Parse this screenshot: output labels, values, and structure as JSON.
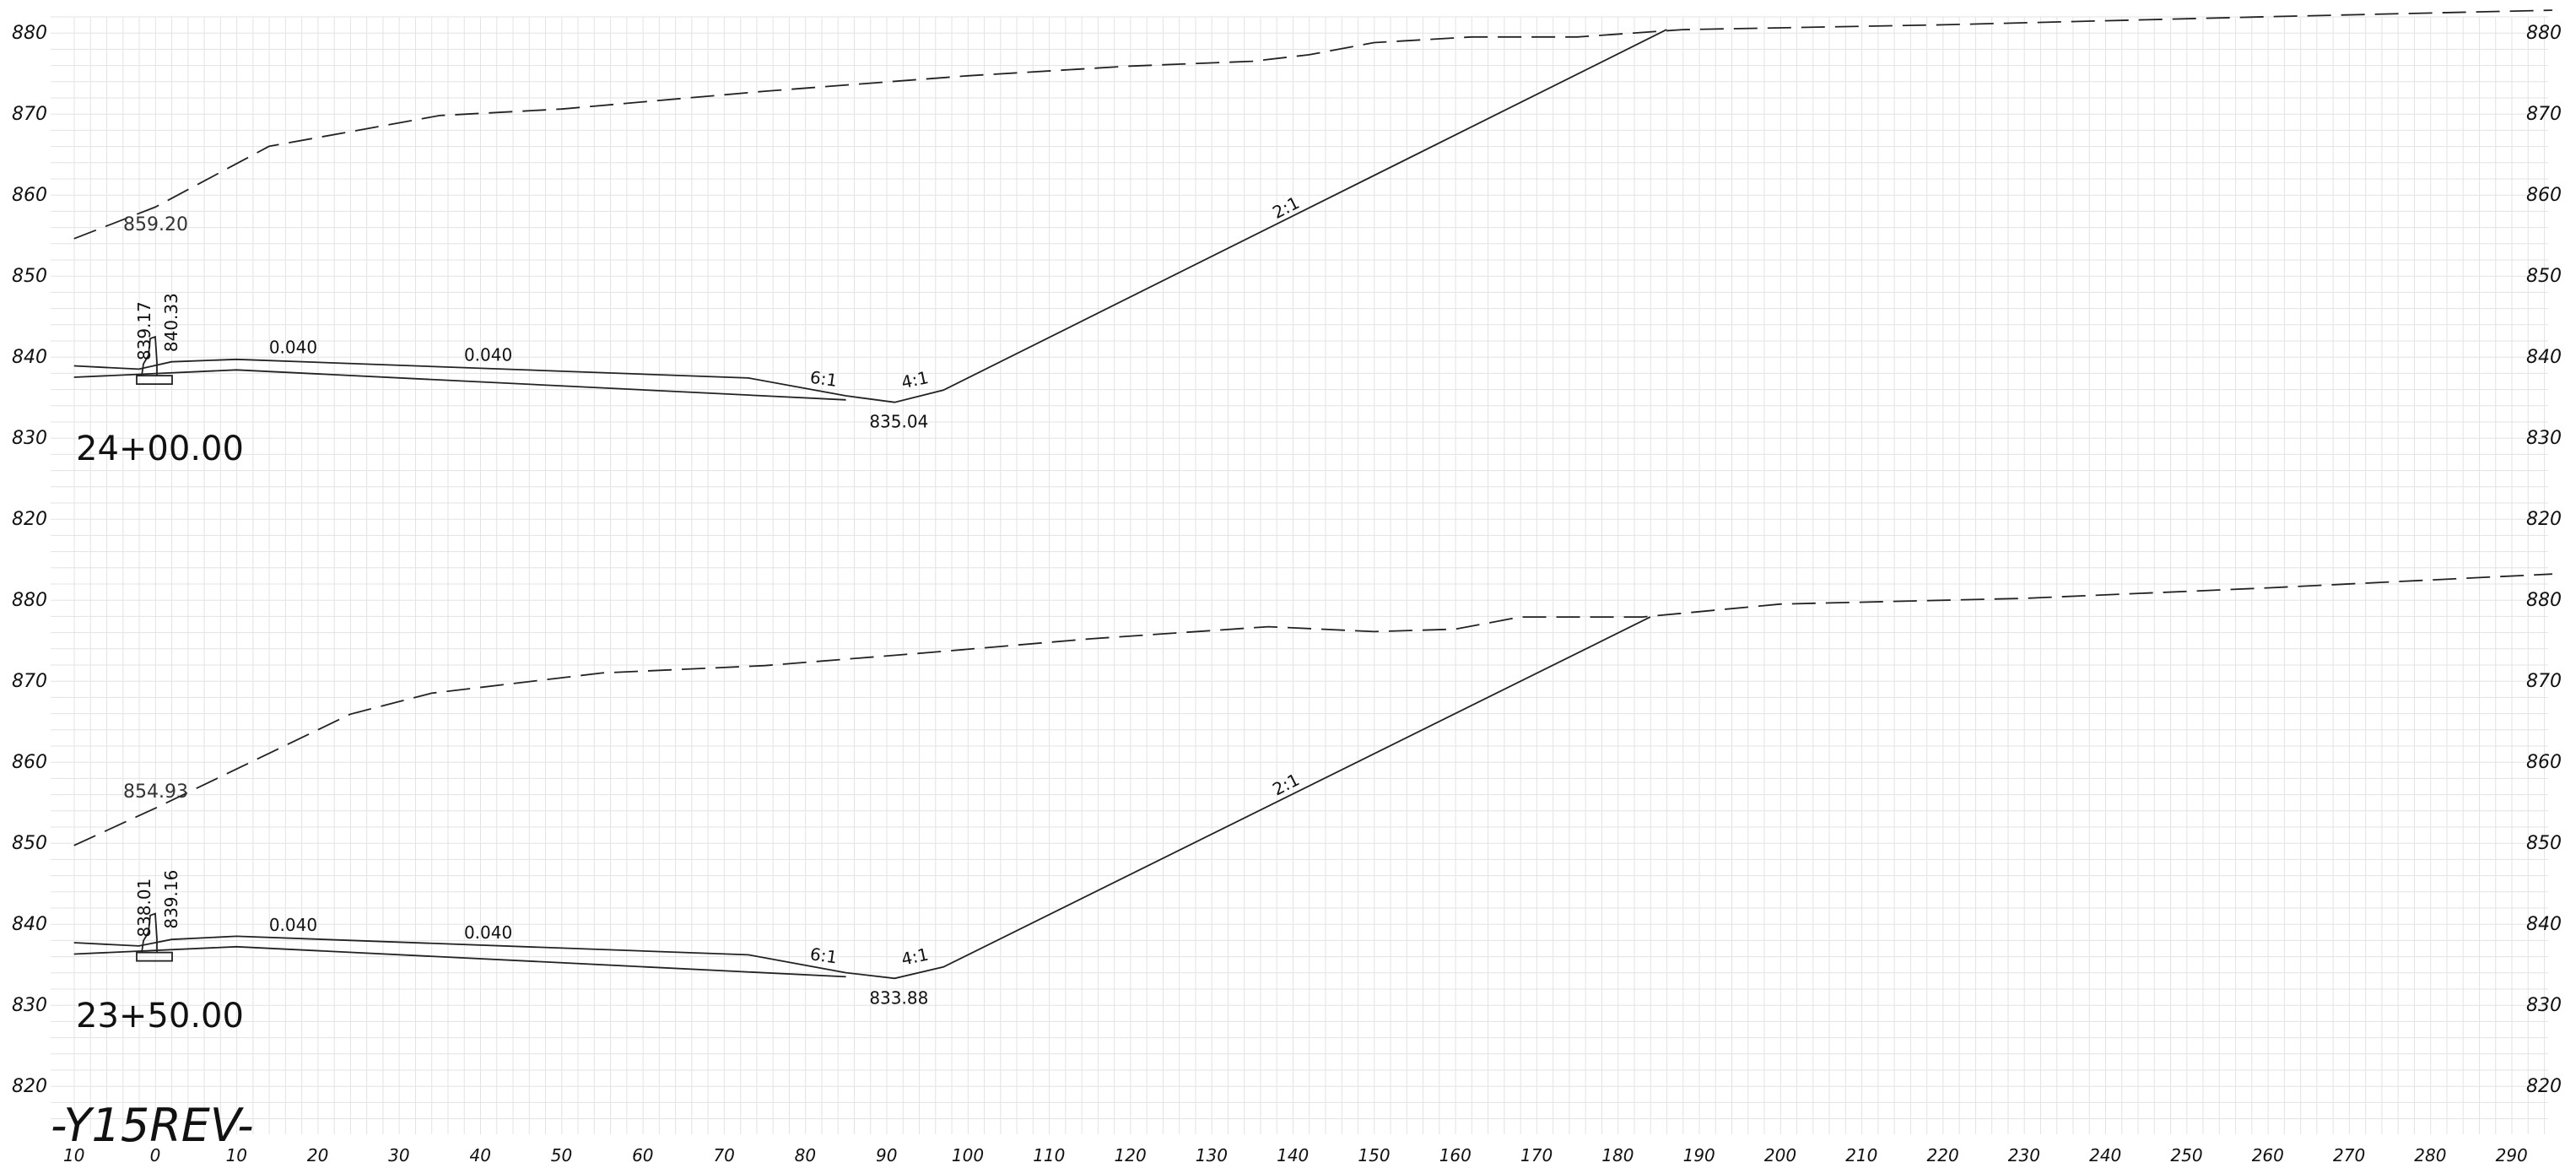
{
  "sheet_label": "-Y15REV-",
  "x_ticks": [
    "10",
    "0",
    "10",
    "20",
    "30",
    "40",
    "50",
    "60",
    "70",
    "80",
    "90",
    "100",
    "110",
    "120",
    "130",
    "140",
    "150",
    "160",
    "170",
    "180",
    "190",
    "200",
    "210",
    "220",
    "230",
    "240",
    "250",
    "260",
    "270",
    "280",
    "290"
  ],
  "sections": [
    {
      "station": "24+00.00",
      "y_ticks": [
        "880",
        "870",
        "860",
        "850",
        "840",
        "830",
        "820"
      ],
      "ground_label": "859.20",
      "curb_labels": [
        "839.17",
        "840.33"
      ],
      "slope_labels": [
        "0.040",
        "0.040",
        "6:1",
        "4:1",
        "2:1"
      ],
      "ditch_label": "835.04",
      "ground_profile": [
        [
          -10,
          854.5
        ],
        [
          0,
          858.4
        ],
        [
          14,
          865.9
        ],
        [
          35,
          869.7
        ],
        [
          50,
          870.5
        ],
        [
          75,
          872.7
        ],
        [
          100,
          874.6
        ],
        [
          120,
          875.8
        ],
        [
          135,
          876.4
        ],
        [
          142,
          877.2
        ],
        [
          150,
          878.7
        ],
        [
          162,
          879.4
        ],
        [
          175,
          879.4
        ],
        [
          188,
          880.3
        ],
        [
          220,
          880.9
        ],
        [
          260,
          881.9
        ],
        [
          295,
          882.7
        ]
      ],
      "top_line": [
        [
          -10,
          838.8
        ],
        [
          -2,
          838.4
        ],
        [
          2,
          839.3
        ],
        [
          10,
          839.6
        ],
        [
          73,
          837.3
        ],
        [
          85,
          835.1
        ]
      ],
      "bottom_line": [
        [
          -10,
          837.4
        ],
        [
          10,
          838.3
        ],
        [
          85,
          834.6
        ]
      ],
      "design_line": [
        [
          85,
          835.1
        ],
        [
          91,
          834.3
        ],
        [
          97,
          835.8
        ],
        [
          186,
          880.3
        ]
      ]
    },
    {
      "station": "23+50.00",
      "y_ticks": [
        "880",
        "870",
        "860",
        "850",
        "840",
        "830",
        "820"
      ],
      "ground_label": "854.93",
      "curb_labels": [
        "838.01",
        "839.16"
      ],
      "slope_labels": [
        "0.040",
        "0.040",
        "6:1",
        "4:1",
        "2:1"
      ],
      "ditch_label": "833.88",
      "ground_profile": [
        [
          -10,
          849.6
        ],
        [
          0,
          854.2
        ],
        [
          24,
          865.8
        ],
        [
          34,
          868.4
        ],
        [
          55,
          870.9
        ],
        [
          75,
          871.8
        ],
        [
          95,
          873.4
        ],
        [
          115,
          875.1
        ],
        [
          137,
          876.6
        ],
        [
          150,
          876.0
        ],
        [
          160,
          876.3
        ],
        [
          168,
          877.8
        ],
        [
          183,
          877.8
        ],
        [
          200,
          879.4
        ],
        [
          230,
          880.1
        ],
        [
          260,
          881.4
        ],
        [
          295,
          883.1
        ]
      ],
      "top_line": [
        [
          -10,
          837.6
        ],
        [
          -2,
          837.2
        ],
        [
          2,
          838.0
        ],
        [
          10,
          838.4
        ],
        [
          73,
          836.1
        ],
        [
          85,
          833.9
        ]
      ],
      "bottom_line": [
        [
          -10,
          836.2
        ],
        [
          10,
          837.1
        ],
        [
          85,
          833.4
        ]
      ],
      "design_line": [
        [
          85,
          833.9
        ],
        [
          91,
          833.2
        ],
        [
          97,
          834.6
        ],
        [
          184,
          877.8
        ]
      ]
    }
  ]
}
